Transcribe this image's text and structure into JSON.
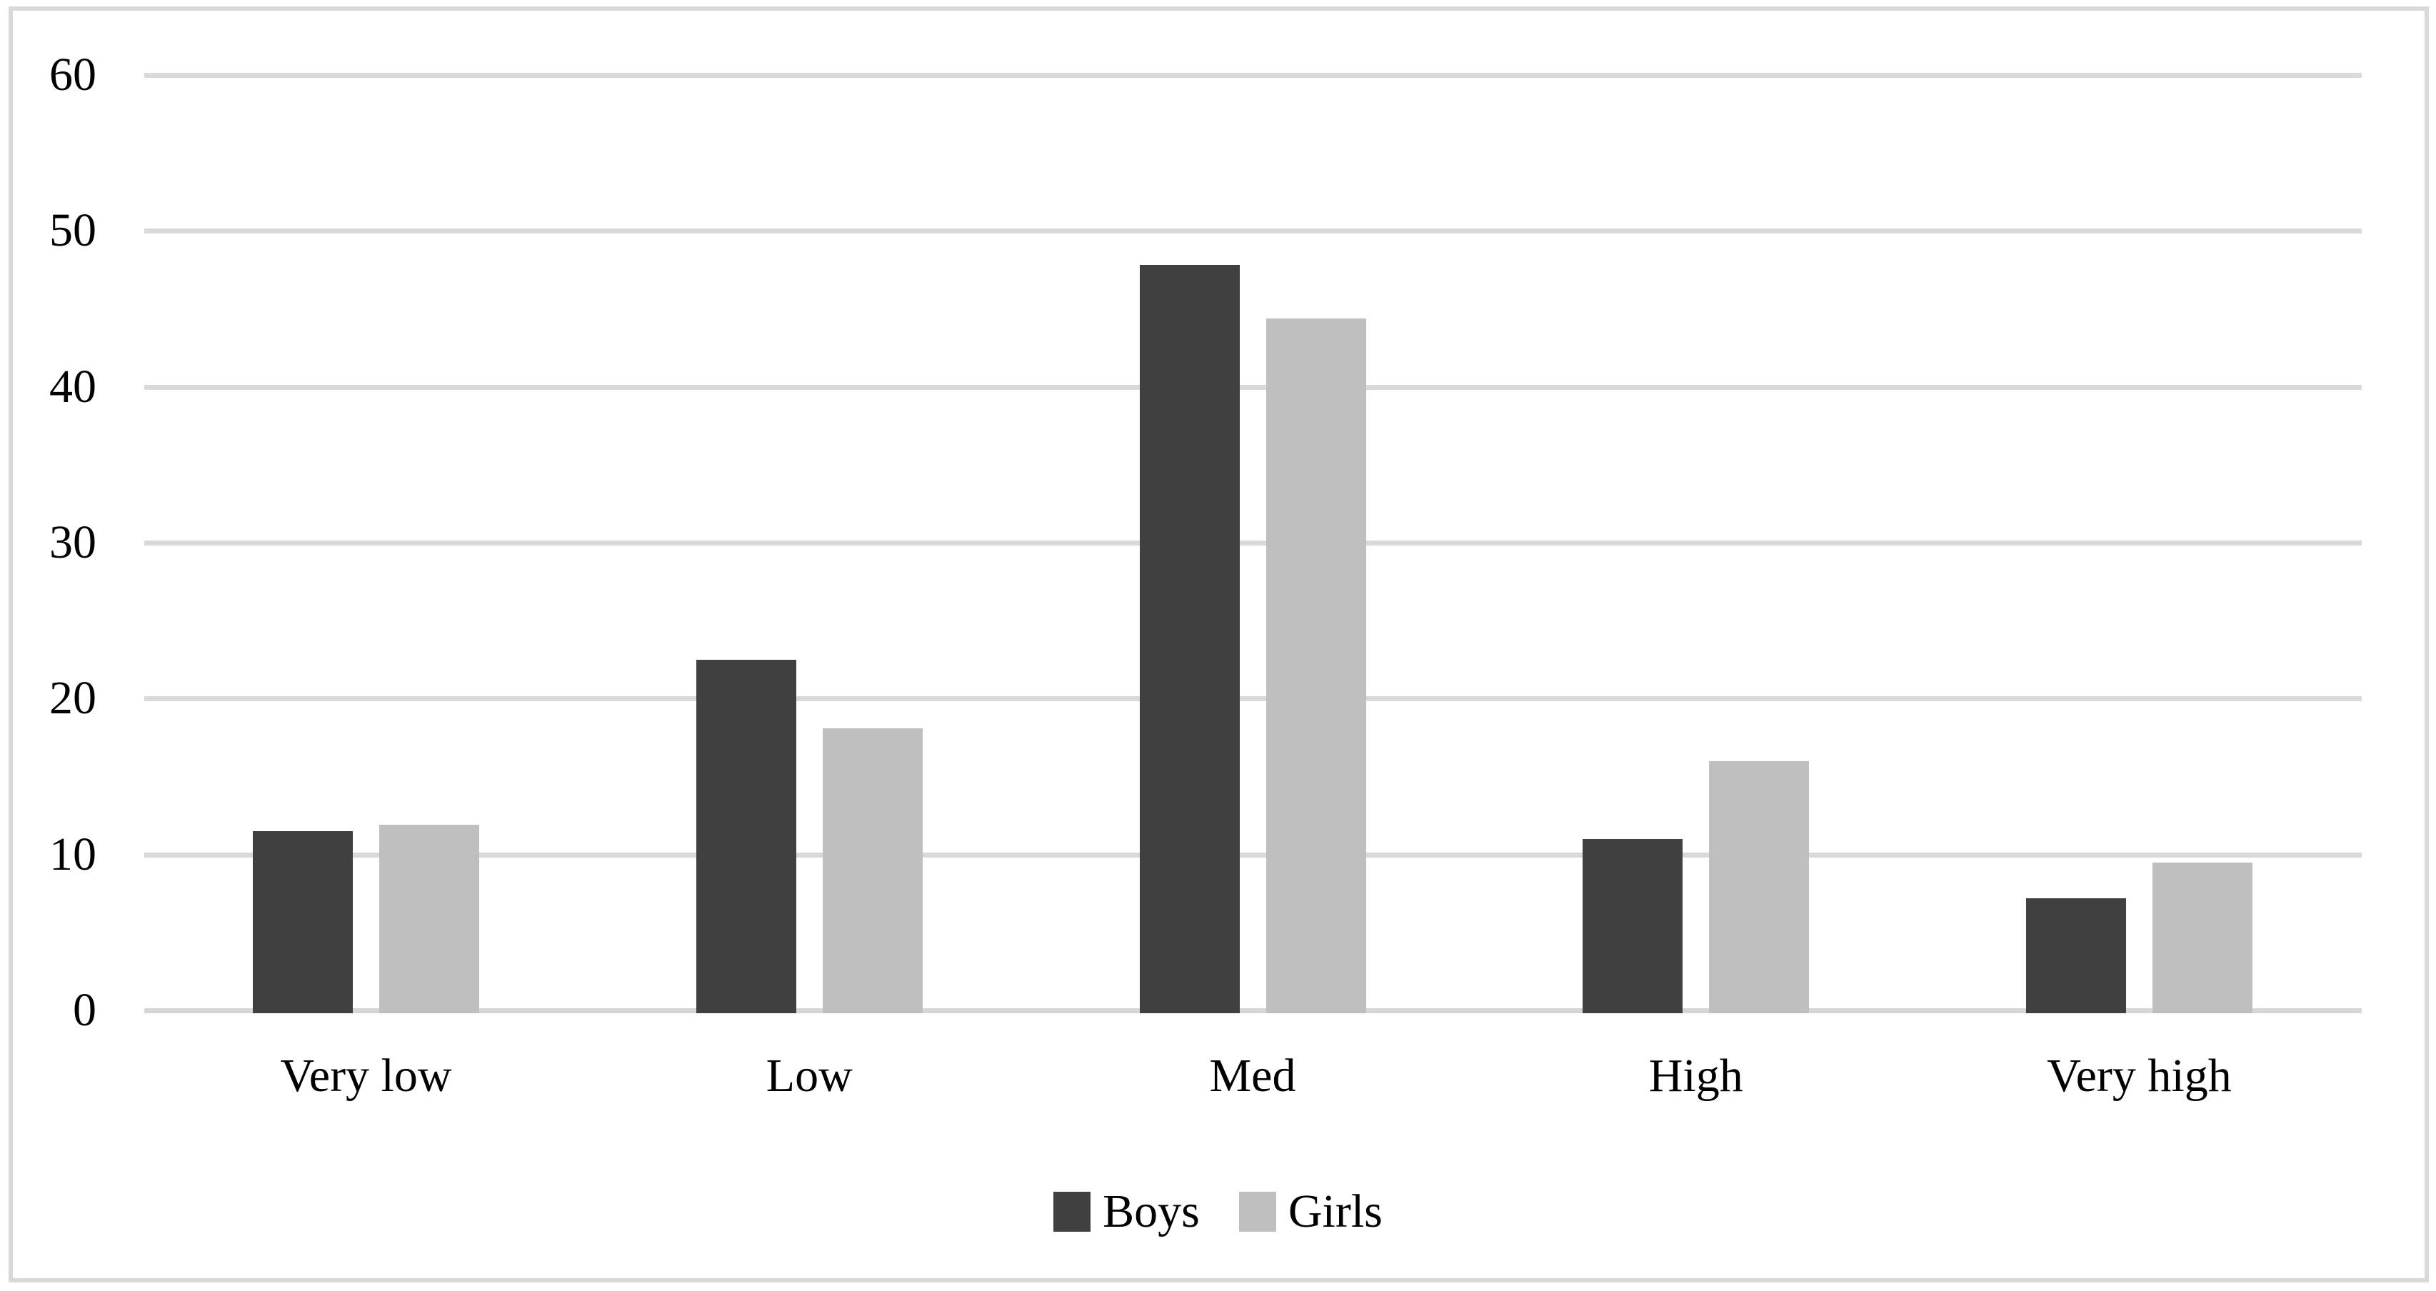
{
  "figure": {
    "background_color": "#FFFFFF",
    "frame_border_color": "#D9D9D9"
  },
  "chart_data": {
    "type": "bar",
    "title": "",
    "xlabel": "",
    "ylabel": "",
    "categories": [
      "Very low",
      "Low",
      "Med",
      "High",
      "Very high"
    ],
    "series": [
      {
        "name": "Boys",
        "color": "#404040",
        "values": [
          11.5,
          22.5,
          47.8,
          11.0,
          7.2
        ]
      },
      {
        "name": "Girls",
        "color": "#BFBFBF",
        "values": [
          11.9,
          18.1,
          44.4,
          16.0,
          9.5
        ]
      }
    ],
    "ylim": [
      0,
      60
    ],
    "yticks": [
      0,
      10,
      20,
      30,
      40,
      50,
      60
    ],
    "grid": true,
    "gridline_color": "#D9D9D9",
    "axis_line_color": "#D6D6D6",
    "legend_position": "bottom"
  }
}
